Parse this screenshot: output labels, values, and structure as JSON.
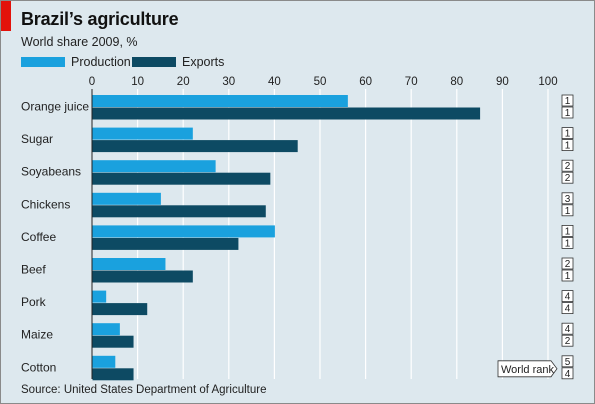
{
  "header": {
    "title": "Brazil’s agriculture",
    "subtitle": "World share 2009, %"
  },
  "source": "Source: United States Department of Agriculture",
  "world_rank_label": "World rank",
  "colors": {
    "production": "#1aa1de",
    "exports": "#0d4a63",
    "background": "#dde8ee",
    "accent": "#e3120b"
  },
  "chart_data": {
    "type": "bar",
    "orientation": "horizontal",
    "categories": [
      "Orange juice",
      "Sugar",
      "Soyabeans",
      "Chickens",
      "Coffee",
      "Beef",
      "Pork",
      "Maize",
      "Cotton"
    ],
    "series": [
      {
        "name": "Production",
        "values": [
          56,
          22,
          27,
          15,
          40,
          16,
          3,
          6,
          5
        ]
      },
      {
        "name": "Exports",
        "values": [
          85,
          45,
          39,
          38,
          32,
          22,
          12,
          9,
          9
        ]
      }
    ],
    "production_rank": [
      "1",
      "1",
      "2",
      "3",
      "1",
      "2",
      "4",
      "4",
      "5"
    ],
    "exports_rank": [
      "1",
      "1",
      "2",
      "1",
      "1",
      "1",
      "4",
      "2",
      "4"
    ],
    "xticks": [
      "0",
      "10",
      "20",
      "30",
      "40",
      "50",
      "60",
      "70",
      "80",
      "90",
      "100"
    ],
    "xlim": [
      0,
      100
    ],
    "grid": true,
    "legend": "top-left"
  }
}
